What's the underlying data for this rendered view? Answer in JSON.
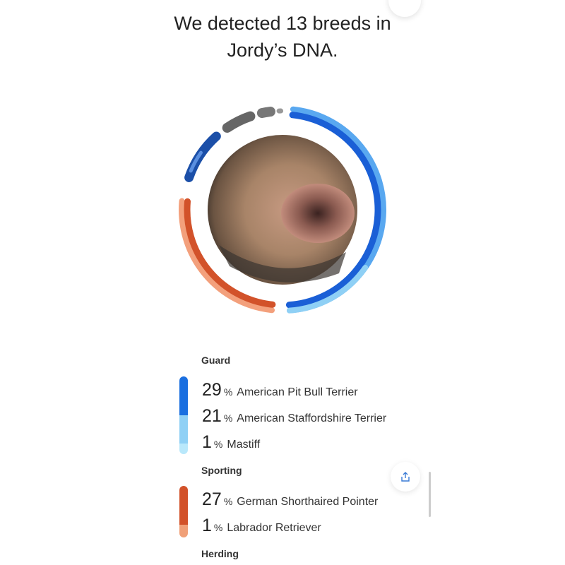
{
  "header": {
    "title_line1": "We detected 13 breeds in",
    "title_line2": "Jordy’s DNA."
  },
  "colors": {
    "guard_dark": "#1a5fd6",
    "guard_light": "#8fd0f5",
    "sporting_dark": "#d2522a",
    "sporting_light": "#f3a07c",
    "hound": "#1b4fa8",
    "other": "#666666"
  },
  "groups": [
    {
      "label": "Guard",
      "breeds": [
        {
          "percent": "29",
          "name": "American Pit Bull Terrier"
        },
        {
          "percent": "21",
          "name": "American Staffordshire Terrier"
        },
        {
          "percent": "1",
          "name": "Mastiff"
        }
      ]
    },
    {
      "label": "Sporting",
      "breeds": [
        {
          "percent": "27",
          "name": "German Shorthaired Pointer"
        },
        {
          "percent": "1",
          "name": "Labrador Retriever"
        }
      ]
    },
    {
      "label": "Herding",
      "breeds": []
    }
  ],
  "percent_sign": "%",
  "icons": {
    "share": "share-icon"
  }
}
